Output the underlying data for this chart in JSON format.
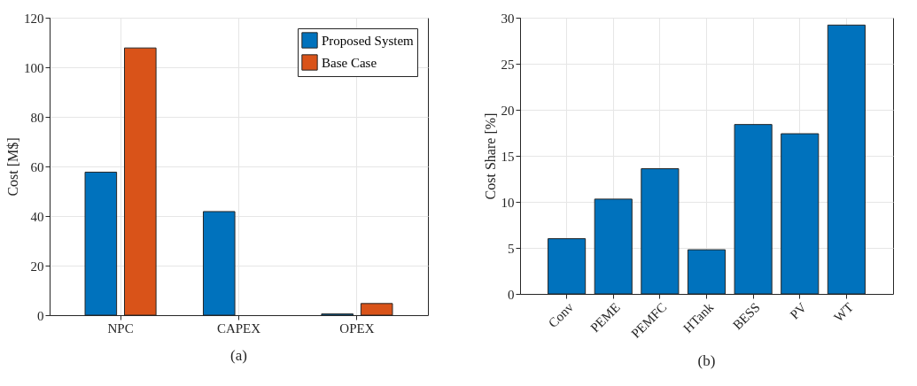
{
  "chart_data": [
    {
      "type": "bar",
      "title": "(a)",
      "ylabel": "Cost [M$]",
      "categories": [
        "NPC",
        "CAPEX",
        "OPEX"
      ],
      "series": [
        {
          "name": "Proposed System",
          "color": "#0072bd",
          "values": [
            57.7,
            41.8,
            0.5
          ]
        },
        {
          "name": "Base Case",
          "color": "#d95319",
          "values": [
            107.8,
            null,
            4.7
          ]
        }
      ],
      "ylim": [
        0,
        120
      ],
      "yticks": [
        0,
        20,
        40,
        60,
        80,
        100,
        120
      ],
      "grid": true,
      "legend": "top right"
    },
    {
      "type": "bar",
      "title": "(b)",
      "ylabel": "Cost Share [%]",
      "categories": [
        "Conv",
        "PEME",
        "PEMFC",
        "HTank",
        "BESS",
        "PV",
        "WT"
      ],
      "values": [
        6.0,
        10.3,
        13.6,
        4.8,
        18.4,
        17.4,
        29.2
      ],
      "color": "#0072bd",
      "ylim": [
        0,
        30
      ],
      "yticks": [
        0,
        5,
        10,
        15,
        20,
        25,
        30
      ],
      "grid": true
    }
  ]
}
